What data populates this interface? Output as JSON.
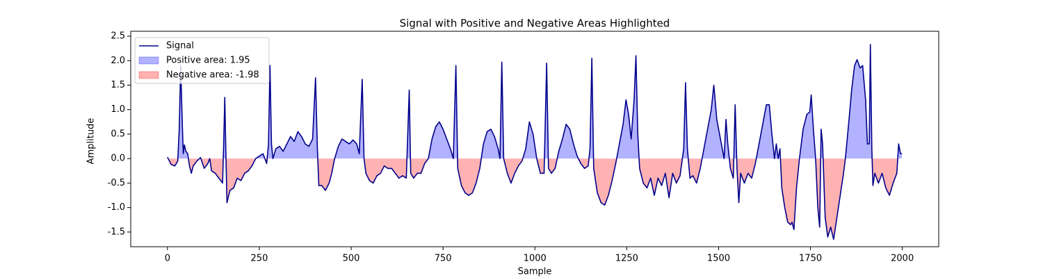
{
  "chart_data": {
    "type": "line",
    "title": "Signal with Positive and Negative Areas Highlighted",
    "x_label": "Sample",
    "y_label": "Amplitude",
    "x": [
      0,
      10,
      20,
      28,
      32,
      36,
      40,
      43,
      46,
      50,
      55,
      60,
      65,
      70,
      80,
      90,
      100,
      110,
      115,
      120,
      130,
      140,
      150,
      153,
      156,
      159,
      162,
      170,
      180,
      190,
      200,
      210,
      220,
      230,
      240,
      250,
      260,
      270,
      275,
      279,
      283,
      287,
      295,
      305,
      315,
      325,
      335,
      345,
      355,
      365,
      375,
      385,
      395,
      403,
      408,
      412,
      420,
      430,
      440,
      447,
      455,
      465,
      475,
      485,
      495,
      505,
      515,
      522,
      530,
      535,
      540,
      550,
      560,
      570,
      580,
      590,
      600,
      610,
      620,
      630,
      640,
      650,
      658,
      662,
      670,
      680,
      690,
      700,
      710,
      720,
      730,
      740,
      750,
      760,
      770,
      778,
      785,
      790,
      800,
      810,
      820,
      830,
      840,
      850,
      860,
      870,
      880,
      890,
      900,
      905,
      910,
      915,
      925,
      935,
      945,
      955,
      965,
      975,
      985,
      995,
      1005,
      1015,
      1025,
      1032,
      1037,
      1045,
      1055,
      1065,
      1075,
      1085,
      1095,
      1105,
      1115,
      1125,
      1135,
      1145,
      1150,
      1155,
      1160,
      1170,
      1180,
      1190,
      1200,
      1210,
      1220,
      1230,
      1240,
      1248,
      1255,
      1262,
      1270,
      1275,
      1280,
      1285,
      1295,
      1305,
      1315,
      1325,
      1335,
      1345,
      1355,
      1365,
      1375,
      1385,
      1395,
      1405,
      1410,
      1415,
      1422,
      1430,
      1440,
      1450,
      1460,
      1470,
      1480,
      1487,
      1495,
      1505,
      1515,
      1520,
      1525,
      1532,
      1540,
      1545,
      1550,
      1555,
      1560,
      1570,
      1580,
      1590,
      1600,
      1610,
      1620,
      1630,
      1638,
      1645,
      1652,
      1657,
      1662,
      1667,
      1672,
      1680,
      1688,
      1696,
      1700,
      1705,
      1712,
      1720,
      1730,
      1740,
      1748,
      1752,
      1758,
      1764,
      1770,
      1775,
      1779,
      1783,
      1790,
      1797,
      1805,
      1813,
      1820,
      1830,
      1840,
      1845,
      1855,
      1862,
      1870,
      1877,
      1885,
      1892,
      1900,
      1905,
      1910,
      1913,
      1917,
      1920,
      1925,
      1935,
      1945,
      1955,
      1965,
      1975,
      1985,
      1990,
      1995,
      1999
    ],
    "series": [
      {
        "name": "Signal",
        "color": "#00008b",
        "values": [
          0.03,
          -0.12,
          -0.15,
          -0.05,
          0.6,
          1.9,
          0.8,
          0.1,
          0.28,
          0.15,
          0.1,
          -0.15,
          -0.3,
          -0.15,
          -0.05,
          0.02,
          -0.2,
          -0.1,
          0.0,
          -0.25,
          -0.3,
          -0.4,
          -0.5,
          0.3,
          1.25,
          0.1,
          -0.9,
          -0.65,
          -0.6,
          -0.4,
          -0.45,
          -0.3,
          -0.25,
          -0.15,
          0.0,
          0.05,
          0.1,
          -0.1,
          0.3,
          1.9,
          0.3,
          0.0,
          0.2,
          0.25,
          0.15,
          0.3,
          0.45,
          0.35,
          0.55,
          0.45,
          0.3,
          0.25,
          0.4,
          1.65,
          0.2,
          -0.55,
          -0.55,
          -0.65,
          -0.5,
          -0.3,
          0.0,
          0.25,
          0.4,
          0.35,
          0.3,
          0.38,
          0.3,
          0.1,
          1.62,
          0.0,
          -0.3,
          -0.45,
          -0.5,
          -0.35,
          -0.3,
          -0.15,
          -0.2,
          -0.2,
          -0.3,
          -0.4,
          -0.35,
          -0.4,
          1.4,
          -0.3,
          -0.4,
          -0.3,
          -0.3,
          -0.1,
          0.0,
          0.4,
          0.65,
          0.75,
          0.6,
          0.4,
          0.2,
          0.0,
          1.9,
          -0.2,
          -0.55,
          -0.7,
          -0.75,
          -0.7,
          -0.5,
          -0.2,
          0.3,
          0.55,
          0.6,
          0.45,
          0.2,
          0.0,
          1.97,
          0.0,
          -0.3,
          -0.5,
          -0.3,
          -0.15,
          -0.05,
          0.2,
          0.75,
          0.5,
          0.0,
          -0.3,
          -0.3,
          1.95,
          -0.2,
          -0.3,
          -0.2,
          0.15,
          0.4,
          0.7,
          0.6,
          0.3,
          0.05,
          -0.1,
          -0.2,
          -0.15,
          0.2,
          2.05,
          -0.2,
          -0.7,
          -0.9,
          -0.95,
          -0.75,
          -0.45,
          -0.1,
          0.3,
          0.7,
          1.2,
          0.9,
          0.4,
          1.2,
          2.1,
          0.5,
          -0.2,
          -0.5,
          -0.6,
          -0.4,
          -0.75,
          -0.4,
          -0.55,
          -0.3,
          -0.8,
          -0.3,
          -0.5,
          -0.35,
          0.2,
          1.55,
          0.2,
          -0.4,
          -0.35,
          -0.5,
          -0.2,
          0.2,
          0.6,
          1.0,
          1.5,
          0.8,
          0.4,
          0.0,
          0.8,
          0.3,
          -0.2,
          -0.4,
          1.1,
          -0.2,
          -0.9,
          -0.3,
          -0.5,
          -0.3,
          -0.4,
          -0.1,
          0.3,
          0.7,
          1.1,
          1.1,
          0.5,
          0.0,
          0.3,
          0.0,
          0.2,
          -0.6,
          -1.0,
          -1.3,
          -1.35,
          -1.3,
          -1.45,
          -0.6,
          0.0,
          0.6,
          0.9,
          0.95,
          1.3,
          0.6,
          0.0,
          -1.0,
          -1.4,
          0.6,
          0.3,
          -1.2,
          -1.6,
          -1.4,
          -1.65,
          -1.3,
          -0.8,
          -0.3,
          0.0,
          0.8,
          1.4,
          1.9,
          2.02,
          1.85,
          1.9,
          1.2,
          0.3,
          0.3,
          2.33,
          0.2,
          -0.55,
          -0.3,
          -0.5,
          -0.3,
          -0.6,
          -0.75,
          -0.5,
          -0.3,
          0.3,
          0.1,
          0.1
        ]
      }
    ],
    "fills": [
      {
        "name": "Positive area: 1.95",
        "color": "#0000ff",
        "where": "above"
      },
      {
        "name": "Negative area: -1.98",
        "color": "#ff0000",
        "where": "below"
      }
    ],
    "xlim": [
      -100,
      2099
    ],
    "ylim": [
      -1.8,
      2.6
    ],
    "xticks": [
      0,
      250,
      500,
      750,
      1000,
      1250,
      1500,
      1750,
      2000
    ],
    "yticks": [
      -1.5,
      {
        "value": -1.0,
        "label": "-1.0"
      },
      -0.5,
      {
        "value": 0.0,
        "label": "0.0"
      },
      0.5,
      {
        "value": 1.0,
        "label": "1.0"
      },
      1.5,
      {
        "value": 2.0,
        "label": "2.0"
      },
      2.5
    ],
    "legend": "upper left"
  }
}
